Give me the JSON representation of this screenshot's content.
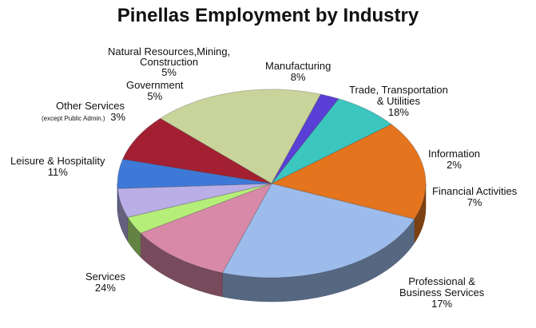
{
  "chart_data": {
    "type": "pie",
    "title": "Pinellas Employment by Industry",
    "slices": [
      {
        "name": "Manufacturing",
        "value": 8,
        "label": "8%",
        "color": "#a32032"
      },
      {
        "name": "Trade, Transportation & Utilities",
        "value": 18,
        "label": "18%",
        "color": "#c8d49a"
      },
      {
        "name": "Information",
        "value": 2,
        "label": "2%",
        "color": "#5a3fd6"
      },
      {
        "name": "Financial Activities",
        "value": 7,
        "label": "7%",
        "color": "#3cc6c0"
      },
      {
        "name": "Professional & Business Services",
        "value": 17,
        "label": "17%",
        "color": "#e4741e"
      },
      {
        "name": "Services",
        "value": 24,
        "label": "24%",
        "color": "#9dbcec"
      },
      {
        "name": "Leisure & Hospitality",
        "value": 11,
        "label": "11%",
        "color": "#d889a8"
      },
      {
        "name": "Other Services",
        "note": "(except Public Admin.)",
        "value": 3,
        "label": "3%",
        "color": "#b6ee7a"
      },
      {
        "name": "Government",
        "value": 5,
        "label": "5%",
        "color": "#b9aee6"
      },
      {
        "name": "Natural Resources,Mining, Construction",
        "value": 5,
        "label": "5%",
        "color": "#3e79d8"
      }
    ]
  },
  "labels": {
    "manufacturing": {
      "name": "Manufacturing",
      "value": "8%"
    },
    "trade": {
      "line1": "Trade, Transportation",
      "line2": "& Utilities",
      "value": "18%"
    },
    "information": {
      "name": "Information",
      "value": "2%"
    },
    "financial": {
      "name": "Financial Activities",
      "value": "7%"
    },
    "professional": {
      "line1": "Professional &",
      "line2": "Business Services",
      "value": "17%"
    },
    "services": {
      "name": "Services",
      "value": "24%"
    },
    "leisure": {
      "name": "Leisure & Hospitality",
      "value": "11%"
    },
    "other": {
      "name": "Other Services",
      "note": "(except Public Admin.)",
      "value": "3%"
    },
    "government": {
      "name": "Government",
      "value": "5%"
    },
    "natural": {
      "line1": "Natural Resources,Mining,",
      "line2": "Construction",
      "value": "5%"
    }
  }
}
